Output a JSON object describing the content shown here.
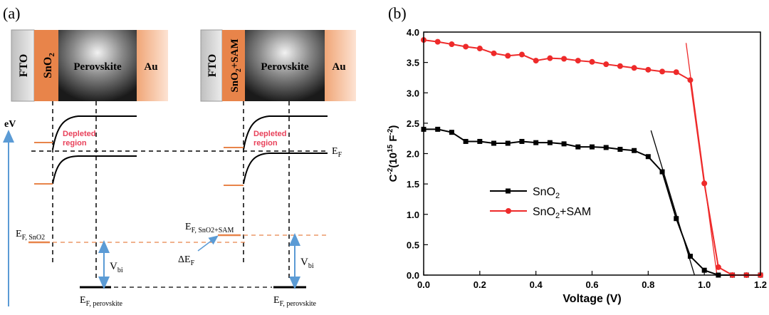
{
  "panel_a": {
    "label": "(a)",
    "stack1": {
      "layers": [
        "FTO",
        "SnO",
        "Perovskite",
        "Au"
      ],
      "sub": "2"
    },
    "stack2": {
      "layers": [
        "FTO",
        "SnO",
        "+SAM",
        "Perovskite",
        "Au"
      ],
      "sub": "2"
    },
    "ev": "eV",
    "depleted1": [
      "Depleted",
      "region"
    ],
    "depleted2": [
      "Depleted",
      "region"
    ],
    "ef": {
      "main": "E",
      "sub": "F"
    },
    "ef_sno2": {
      "main": "E",
      "sub": "F, SnO2"
    },
    "ef_sno2sam": {
      "main": "E",
      "sub": "F, SnO2+SAM"
    },
    "delta_ef": {
      "main": "ΔE",
      "sub": "F"
    },
    "vbi1": {
      "main": "V",
      "sub": "bi"
    },
    "vbi2": {
      "main": "V",
      "sub": "bi"
    },
    "ef_perov1": {
      "main": "E",
      "sub": "F, perovskite"
    },
    "ef_perov2": {
      "main": "E",
      "sub": "F, perovskite"
    },
    "colors": {
      "orange": "#e8844a",
      "blue": "#5b9bd5",
      "pink": "#e8415a",
      "fto": "#d9d9d9",
      "au": "#f4b183"
    }
  },
  "chart_data": {
    "panel_label": "(b)",
    "type": "line",
    "xlabel": "Voltage (V)",
    "ylabel": {
      "main": "C",
      "sup1": "-2",
      "mid": "(10",
      "sup2": "15",
      "unit": " F",
      "sup3": "-2",
      "close": ")"
    },
    "xlim": [
      0.0,
      1.2
    ],
    "ylim": [
      0.0,
      4.0
    ],
    "xticks": [
      "0.0",
      "0.2",
      "0.4",
      "0.6",
      "0.8",
      "1.0",
      "1.2"
    ],
    "yticks": [
      "0.0",
      "0.5",
      "1.0",
      "1.5",
      "2.0",
      "2.5",
      "3.0",
      "3.5",
      "4.0"
    ],
    "legend_placement": "lower-left",
    "series": [
      {
        "name": "SnO2",
        "label_main": "SnO",
        "label_sub": "2",
        "label_rest": "",
        "color": "#000000",
        "marker": "square",
        "x": [
          0.0,
          0.05,
          0.1,
          0.15,
          0.2,
          0.25,
          0.3,
          0.35,
          0.4,
          0.45,
          0.5,
          0.55,
          0.6,
          0.65,
          0.7,
          0.75,
          0.8,
          0.85,
          0.9,
          0.95,
          1.0,
          1.05,
          1.1,
          1.15,
          1.2
        ],
        "y": [
          2.4,
          2.4,
          2.35,
          2.2,
          2.2,
          2.17,
          2.17,
          2.2,
          2.18,
          2.18,
          2.16,
          2.11,
          2.11,
          2.1,
          2.07,
          2.05,
          1.95,
          1.7,
          0.93,
          0.31,
          0.08,
          0.0,
          0.0,
          0.0,
          0.0
        ]
      },
      {
        "name": "SnO2+SAM",
        "label_main": "SnO",
        "label_sub": "2",
        "label_rest": "+SAM",
        "color": "#ee2a2a",
        "marker": "circle",
        "x": [
          0.0,
          0.05,
          0.1,
          0.15,
          0.2,
          0.25,
          0.3,
          0.35,
          0.4,
          0.45,
          0.5,
          0.55,
          0.6,
          0.65,
          0.7,
          0.75,
          0.8,
          0.85,
          0.9,
          0.95,
          1.0,
          1.05,
          1.1,
          1.15,
          1.2
        ],
        "y": [
          3.87,
          3.84,
          3.8,
          3.76,
          3.73,
          3.65,
          3.61,
          3.63,
          3.53,
          3.57,
          3.56,
          3.53,
          3.51,
          3.47,
          3.44,
          3.41,
          3.38,
          3.35,
          3.34,
          3.21,
          1.51,
          0.13,
          0.0,
          0.0,
          0.0
        ]
      }
    ],
    "tangents": [
      {
        "color": "#000000",
        "x1": 0.81,
        "y1": 2.38,
        "x2": 0.965,
        "y2": 0.0
      },
      {
        "color": "#ee2a2a",
        "x1": 0.935,
        "y1": 3.82,
        "x2": 1.045,
        "y2": 0.0
      }
    ]
  }
}
